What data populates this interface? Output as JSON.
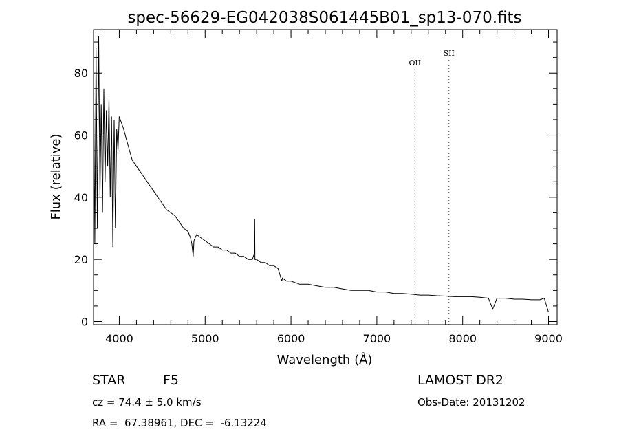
{
  "chart_data": {
    "type": "line",
    "title": "spec-56629-EG042038S061445B01_sp13-070.fits",
    "xlabel": "Wavelength (Å)",
    "ylabel": "Flux (relative)",
    "xlim": [
      3700,
      9100
    ],
    "ylim": [
      -1,
      94
    ],
    "x_ticks": [
      "4000",
      "5000",
      "6000",
      "7000",
      "8000",
      "9000"
    ],
    "y_ticks": [
      "0",
      "20",
      "40",
      "60",
      "80"
    ],
    "grid": false,
    "series": [
      {
        "x": [
          3700,
          3715,
          3730,
          3745,
          3760,
          3775,
          3790,
          3805,
          3820,
          3835,
          3850,
          3865,
          3880,
          3895,
          3910,
          3925,
          3940,
          3955,
          3970,
          3985,
          4000,
          4050,
          4100,
          4150,
          4200,
          4250,
          4300,
          4350,
          4400,
          4450,
          4500,
          4550,
          4600,
          4650,
          4700,
          4750,
          4800,
          4830,
          4845,
          4861,
          4870,
          4900,
          4950,
          5000,
          5050,
          5100,
          5150,
          5200,
          5250,
          5300,
          5350,
          5400,
          5450,
          5500,
          5550,
          5575,
          5577,
          5580,
          5600,
          5650,
          5700,
          5750,
          5800,
          5850,
          5893,
          5900,
          5950,
          6000,
          6100,
          6200,
          6300,
          6400,
          6500,
          6600,
          6700,
          6800,
          6900,
          7000,
          7100,
          7200,
          7300,
          7400,
          7500,
          7600,
          7700,
          7800,
          7900,
          8000,
          8100,
          8200,
          8300,
          8350,
          8400,
          8500,
          8600,
          8700,
          8800,
          8900,
          8950,
          9000
        ],
        "y": [
          85,
          25,
          88,
          30,
          92,
          40,
          70,
          35,
          75,
          45,
          68,
          50,
          72,
          40,
          66,
          24,
          65,
          30,
          62,
          55,
          66,
          62,
          57,
          52,
          50,
          48,
          46,
          44,
          42,
          40,
          38,
          36,
          35,
          34,
          32,
          30,
          29,
          27,
          25,
          21,
          26,
          28,
          27,
          26,
          25,
          24,
          24,
          23,
          23,
          22,
          22,
          21,
          21,
          20,
          20,
          22,
          33,
          20,
          20,
          19,
          19,
          18,
          18,
          17,
          13,
          14,
          13,
          13,
          12,
          12,
          11.5,
          11,
          11,
          10.5,
          10,
          10,
          10,
          9.5,
          9.5,
          9,
          9,
          8.8,
          8.5,
          8.5,
          8.3,
          8.2,
          8,
          8,
          8,
          7.8,
          7.5,
          4,
          7.5,
          7.5,
          7.2,
          7.2,
          7,
          7,
          7.5,
          3
        ]
      }
    ],
    "annotations": [
      {
        "label": "OII",
        "x": 7444
      },
      {
        "label": "SII",
        "x": 7840
      }
    ]
  },
  "footer": {
    "object_class": "STAR",
    "subclass": "F5",
    "survey": "LAMOST DR2",
    "redshift": "cz = 74.4 ± 5.0 km/s",
    "obs_date": "Obs-Date: 20131202",
    "coords": "RA =  67.38961, DEC =  -6.13224"
  }
}
